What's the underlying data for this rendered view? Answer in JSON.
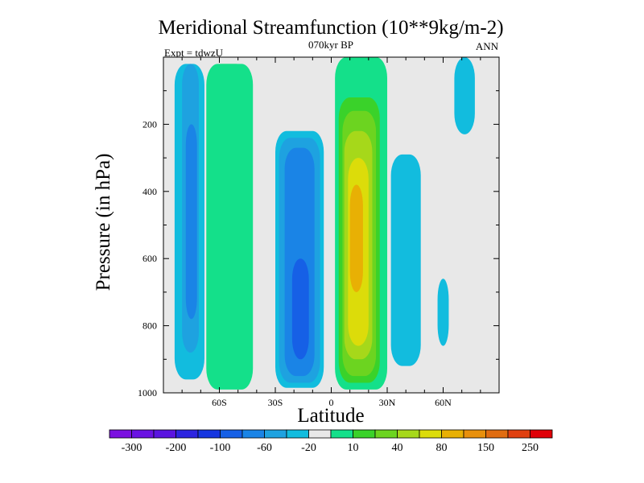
{
  "chart_data": {
    "type": "heatmap",
    "title": "Meridional Streamfunction (10**9kg/m-2)",
    "subtitle": "070kyr BP",
    "left_label": "Expt = tdwzU",
    "right_label": "ANN",
    "xlabel": "Latitude",
    "ylabel": "Pressure (in hPa)",
    "xlim": [
      -90,
      90
    ],
    "ylim": [
      1000,
      0
    ],
    "x_ticks": [
      {
        "value": -60,
        "label": "60S"
      },
      {
        "value": -30,
        "label": "30S"
      },
      {
        "value": 0,
        "label": "0"
      },
      {
        "value": 30,
        "label": "30N"
      },
      {
        "value": 60,
        "label": "60N"
      }
    ],
    "y_ticks": [
      {
        "value": 200,
        "label": "200"
      },
      {
        "value": 400,
        "label": "400"
      },
      {
        "value": 600,
        "label": "600"
      },
      {
        "value": 800,
        "label": "800"
      },
      {
        "value": 1000,
        "label": "1000"
      }
    ],
    "colorbar": {
      "colors": [
        "#7b10e0",
        "#6a12e2",
        "#5a14e0",
        "#2c24e0",
        "#1636e0",
        "#1660e6",
        "#1a84e6",
        "#1ea2e0",
        "#12bcde",
        "#e8e8e8",
        "#14e08a",
        "#3ad22a",
        "#6cd420",
        "#a6d81a",
        "#dcdc0a",
        "#e8b004",
        "#e8900c",
        "#e06c10",
        "#e04010",
        "#e00008"
      ],
      "labels": [
        "-300",
        "-200",
        "-100",
        "-60",
        "-20",
        "10",
        "40",
        "80",
        "150",
        "250"
      ]
    },
    "background_color": "#e8e8e8",
    "regions": [
      {
        "name": "sh-polar-cell",
        "level": "-20",
        "lat": [
          -84,
          -68
        ],
        "p": [
          20,
          960
        ],
        "color": "#12bcde"
      },
      {
        "name": "sh-polar-cell-core",
        "level": "-60",
        "lat": [
          -80,
          -71
        ],
        "p": [
          20,
          880
        ],
        "color": "#1ea2e0"
      },
      {
        "name": "sh-polar-cell-inner",
        "level": "-100",
        "lat": [
          -78,
          -72
        ],
        "p": [
          200,
          780
        ],
        "color": "#1a84e6"
      },
      {
        "name": "sh-ferrel-cell",
        "level": "40",
        "lat": [
          -65,
          -45
        ],
        "p": [
          20,
          980
        ],
        "color": "#3ad22a"
      },
      {
        "name": "sh-ferrel-cell-edge",
        "level": "10",
        "lat": [
          -67,
          -42
        ],
        "p": [
          20,
          990
        ],
        "color": "#14e08a"
      },
      {
        "name": "sh-hadley-cell",
        "level": "-20",
        "lat": [
          -30,
          -4
        ],
        "p": [
          220,
          985
        ],
        "color": "#12bcde"
      },
      {
        "name": "sh-hadley-cell-60",
        "level": "-60",
        "lat": [
          -28,
          -6
        ],
        "p": [
          240,
          970
        ],
        "color": "#1ea2e0"
      },
      {
        "name": "sh-hadley-cell-100",
        "level": "-100",
        "lat": [
          -25,
          -9
        ],
        "p": [
          270,
          950
        ],
        "color": "#1a84e6"
      },
      {
        "name": "sh-hadley-cell-core",
        "level": "-150",
        "lat": [
          -21,
          -12
        ],
        "p": [
          600,
          900
        ],
        "color": "#1660e6"
      },
      {
        "name": "nh-hadley-cell-edge",
        "level": "10",
        "lat": [
          2,
          30
        ],
        "p": [
          0,
          990
        ],
        "color": "#14e08a"
      },
      {
        "name": "nh-hadley-cell-40",
        "level": "40",
        "lat": [
          4,
          26
        ],
        "p": [
          120,
          970
        ],
        "color": "#3ad22a"
      },
      {
        "name": "nh-hadley-cell-80",
        "level": "80",
        "lat": [
          6,
          24
        ],
        "p": [
          160,
          950
        ],
        "color": "#6cd420"
      },
      {
        "name": "nh-hadley-cell-150",
        "level": "150",
        "lat": [
          7,
          22
        ],
        "p": [
          220,
          900
        ],
        "color": "#a6d81a"
      },
      {
        "name": "nh-hadley-cell-250",
        "level": "250",
        "lat": [
          9,
          20
        ],
        "p": [
          300,
          860
        ],
        "color": "#dcdc0a"
      },
      {
        "name": "nh-hadley-cell-core",
        "level": "300",
        "lat": [
          10,
          17
        ],
        "p": [
          380,
          700
        ],
        "color": "#e8b004"
      },
      {
        "name": "nh-ferrel-cell",
        "level": "-20",
        "lat": [
          32,
          48
        ],
        "p": [
          290,
          920
        ],
        "color": "#12bcde"
      },
      {
        "name": "nh-polar-cell",
        "level": "-20",
        "lat": [
          66,
          77
        ],
        "p": [
          0,
          230
        ],
        "color": "#12bcde"
      },
      {
        "name": "nh-small-patch",
        "level": "-20",
        "lat": [
          57,
          63
        ],
        "p": [
          660,
          860
        ],
        "color": "#12bcde"
      }
    ]
  }
}
